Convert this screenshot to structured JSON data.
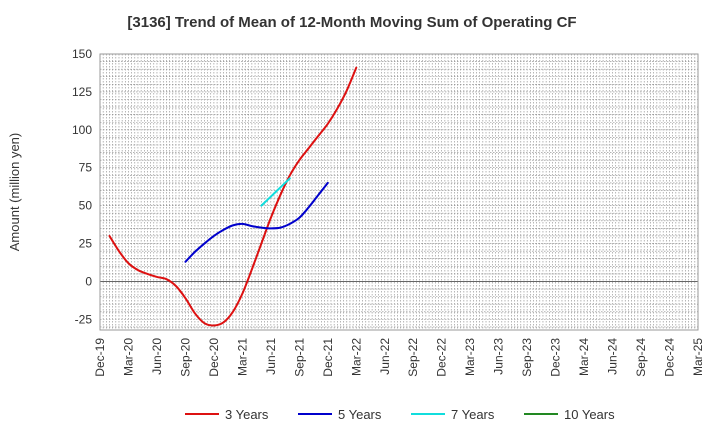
{
  "chart_data": {
    "type": "line",
    "title": "[3136]  Trend of Mean of 12-Month Moving Sum of Operating CF",
    "xlabel": "",
    "ylabel": "Amount (million yen)",
    "ylim": [
      -32,
      150
    ],
    "yticks": [
      150,
      125,
      100,
      75,
      50,
      25,
      0,
      -25
    ],
    "x_tick_labels": [
      "Dec-19",
      "Mar-20",
      "Jun-20",
      "Sep-20",
      "Dec-20",
      "Mar-21",
      "Jun-21",
      "Sep-21",
      "Dec-21",
      "Mar-22",
      "Jun-22",
      "Sep-22",
      "Dec-22",
      "Mar-23",
      "Jun-23",
      "Sep-23",
      "Dec-23",
      "Mar-24",
      "Jun-24",
      "Sep-24",
      "Dec-24",
      "Mar-25"
    ],
    "grid": true,
    "legend_position": "bottom",
    "series": [
      {
        "name": "3 Years",
        "color": "#dd1111",
        "start_index": 1,
        "values": [
          30,
          20,
          12,
          7.5,
          5,
          3,
          1.5,
          -3,
          -11,
          -21,
          -27.5,
          -29,
          -27,
          -20,
          -8,
          8,
          25,
          42,
          57,
          70,
          80,
          88,
          96,
          104,
          114,
          126,
          141
        ]
      },
      {
        "name": "5 Years",
        "color": "#0000cc",
        "start_index": 9,
        "values": [
          13,
          19.5,
          25,
          30,
          34,
          37,
          38,
          36.5,
          35.5,
          35,
          35.5,
          38,
          42,
          49,
          57,
          65
        ]
      },
      {
        "name": "7 Years",
        "color": "#11dddd",
        "start_index": 17,
        "values": [
          50,
          56,
          62,
          68
        ]
      },
      {
        "name": "10 Years",
        "color": "#228822",
        "start_index": 0,
        "values": []
      }
    ]
  }
}
